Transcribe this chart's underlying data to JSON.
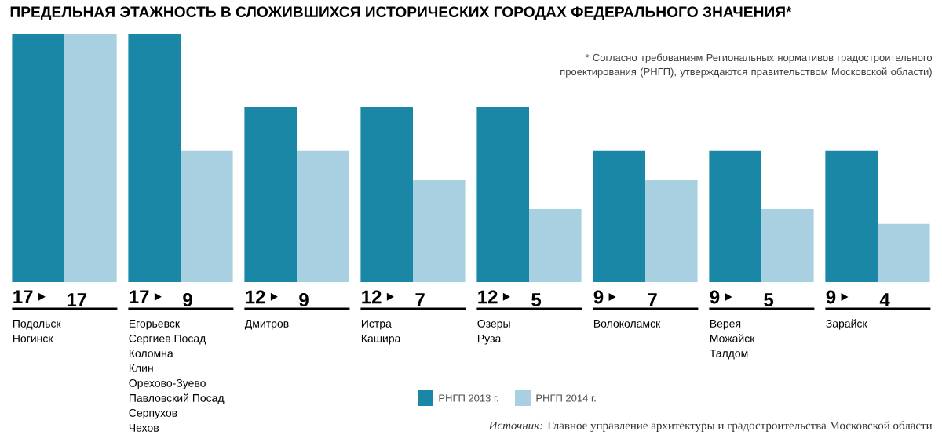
{
  "chart_data": {
    "type": "bar",
    "title": "ПРЕДЕЛЬНАЯ ЭТАЖНОСТЬ В СЛОЖИВШИХСЯ ИСТОРИЧЕСКИХ ГОРОДАХ ФЕДЕРАЛЬНОГО ЗНАЧЕНИЯ*",
    "categories": [
      "Подольск\nНогинск",
      "Егорьевск\nСергиев Посад\nКоломна\nКлин\nОрехово-Зуево\nПавловский Посад\nСерпухов\nЧехов",
      "Дмитров",
      "Истра\nКашира",
      "Озеры\nРуза",
      "Волоколамск",
      "Верея\nМожайск\nТалдом",
      "Зарайск"
    ],
    "series": [
      {
        "name": "РНГП 2013 г.",
        "color": "#1a87a6",
        "values": [
          17,
          17,
          12,
          12,
          12,
          9,
          9,
          9
        ]
      },
      {
        "name": "РНГП 2014 г.",
        "color": "#a8d0e0",
        "values": [
          17,
          9,
          9,
          7,
          5,
          7,
          5,
          4
        ]
      }
    ],
    "data_labels": true,
    "legend": "bottom",
    "annotations": [
      "* Согласно требованиям Региональных нормативов градостроительного проектирования (РНГП), утверждаются правительством Московской области)",
      "*Источник:* Главное управление архитектуры и градостроительства Московской области"
    ]
  }
}
